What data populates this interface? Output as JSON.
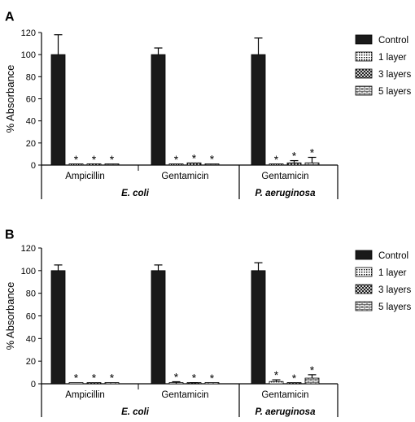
{
  "chart_data": [
    {
      "panel": "A",
      "type": "bar",
      "ylabel": "% Absorbance",
      "ylim": [
        0,
        120
      ],
      "yticks": [
        "0",
        "20",
        "40",
        "60",
        "80",
        "100",
        "120"
      ],
      "categories": [
        "Ampicillin",
        "Gentamicin",
        "Gentamicin"
      ],
      "organisms": [
        {
          "label": "E. coli",
          "span": [
            0,
            1
          ]
        },
        {
          "label": "P. aeruginosa",
          "span": [
            2,
            2
          ]
        }
      ],
      "series": [
        {
          "name": "Control",
          "values": [
            100,
            100,
            100
          ],
          "errors": [
            18,
            6,
            15
          ],
          "significant": [
            false,
            false,
            false
          ]
        },
        {
          "name": "1 layer",
          "values": [
            0.3,
            0.3,
            0.3
          ],
          "errors": [
            0,
            0,
            0
          ],
          "significant": [
            true,
            true,
            true
          ]
        },
        {
          "name": "3 layers",
          "values": [
            0.3,
            2,
            2
          ],
          "errors": [
            0,
            0,
            2
          ],
          "significant": [
            true,
            true,
            true
          ]
        },
        {
          "name": "5 layers",
          "values": [
            0.3,
            1,
            2
          ],
          "errors": [
            0,
            0,
            5
          ],
          "significant": [
            true,
            true,
            true
          ]
        }
      ],
      "legend_position": "right"
    },
    {
      "panel": "B",
      "type": "bar",
      "ylabel": "% Absorbance",
      "ylim": [
        0,
        120
      ],
      "yticks": [
        "0",
        "20",
        "40",
        "60",
        "80",
        "100",
        "120"
      ],
      "categories": [
        "Ampicillin",
        "Gentamicin",
        "Gentamicin"
      ],
      "organisms": [
        {
          "label": "E. coli",
          "span": [
            0,
            1
          ]
        },
        {
          "label": "P. aeruginosa",
          "span": [
            2,
            2
          ]
        }
      ],
      "series": [
        {
          "name": "Control",
          "values": [
            100,
            100,
            100
          ],
          "errors": [
            5,
            5,
            7
          ],
          "significant": [
            false,
            false,
            false
          ]
        },
        {
          "name": "1 layer",
          "values": [
            1,
            0.3,
            2
          ],
          "errors": [
            0,
            1.5,
            1.5
          ],
          "significant": [
            true,
            true,
            true
          ]
        },
        {
          "name": "3 layers",
          "values": [
            1,
            0.5,
            0.5
          ],
          "errors": [
            0,
            0.5,
            0
          ],
          "significant": [
            true,
            true,
            true
          ]
        },
        {
          "name": "5 layers",
          "values": [
            1,
            0.3,
            5
          ],
          "errors": [
            0,
            0,
            3
          ],
          "significant": [
            true,
            true,
            true
          ]
        }
      ],
      "legend_position": "right"
    }
  ],
  "significance_marker": "*",
  "colors": {
    "control": "#1a1a1a",
    "axis": "#000000"
  }
}
